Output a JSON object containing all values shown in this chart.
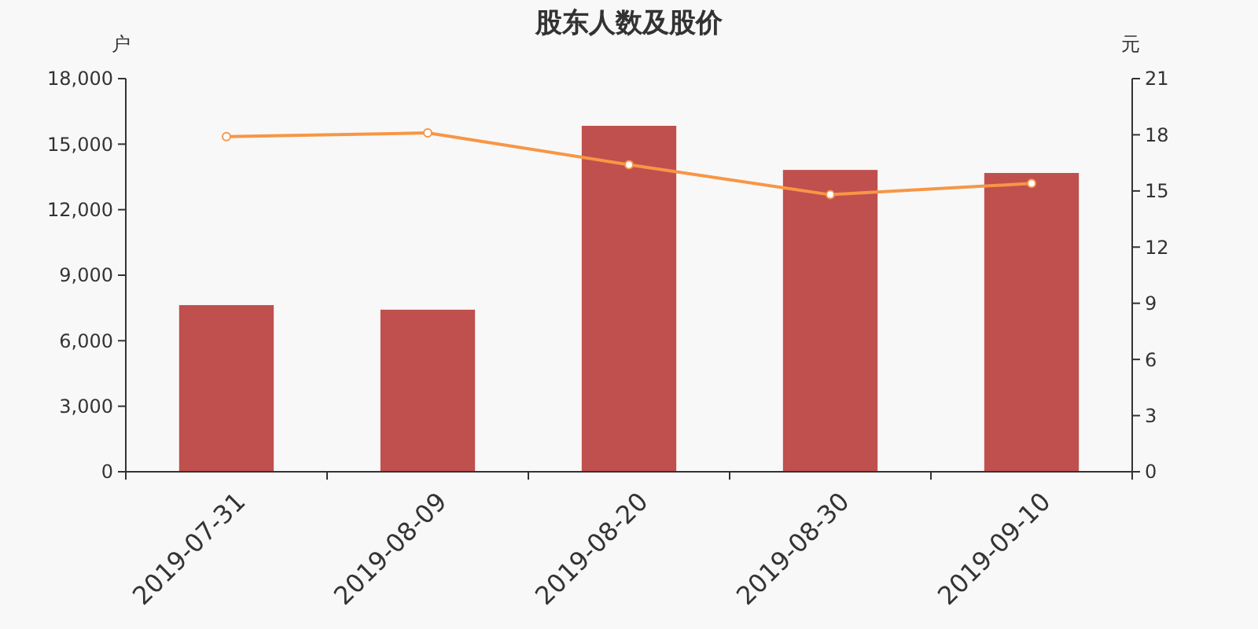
{
  "chart_data": {
    "type": "bar",
    "title": "股东人数及股价",
    "ylabel": "户",
    "y2label": "元",
    "categories": [
      "2019-07-31",
      "2019-08-09",
      "2019-08-20",
      "2019-08-30",
      "2019-09-10"
    ],
    "series": [
      {
        "color": "#c0504d",
        "values": [
          7630,
          7420,
          15840,
          13820,
          13680
        ]
      },
      {
        "type": "line",
        "axis": "y2",
        "color": "#f79646",
        "values": [
          17.9,
          18.1,
          16.4,
          14.8,
          15.4
        ]
      }
    ],
    "ylim": [
      0,
      18000
    ],
    "yticks": [
      {
        "value": 0,
        "label": "0"
      },
      {
        "value": 3000,
        "label": "3,000"
      },
      {
        "value": 6000,
        "label": "6,000"
      },
      {
        "value": 9000,
        "label": "9,000"
      },
      {
        "value": 12000,
        "label": "12,000"
      },
      {
        "value": 15000,
        "label": "15,000"
      },
      {
        "value": 18000,
        "label": "18,000"
      }
    ],
    "y2lim": [
      0,
      21
    ],
    "y2ticks": [
      0,
      3,
      6,
      9,
      12,
      15,
      18,
      21
    ],
    "marker": "circle",
    "grid": false
  }
}
